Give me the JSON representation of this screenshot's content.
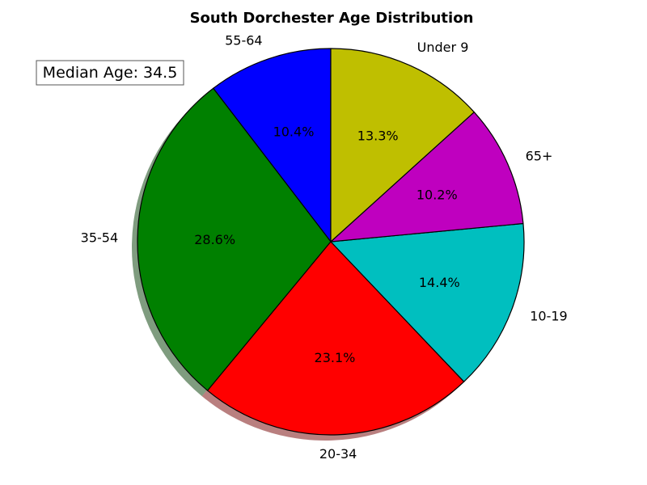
{
  "chart_data": {
    "type": "pie",
    "title": "South Dorchester Age Distribution",
    "annotation": "Median Age: 34.5",
    "start_angle_deg": 90,
    "direction": "counterclockwise",
    "shadow": true,
    "slices": [
      {
        "label": "55-64",
        "value": 10.4,
        "pct_label": "10.4%",
        "color": "#0000ff"
      },
      {
        "label": "35-54",
        "value": 28.6,
        "pct_label": "28.6%",
        "color": "#008000"
      },
      {
        "label": "20-34",
        "value": 23.1,
        "pct_label": "23.1%",
        "color": "#ff0000"
      },
      {
        "label": "10-19",
        "value": 14.4,
        "pct_label": "14.4%",
        "color": "#00bfbf"
      },
      {
        "label": "65+",
        "value": 10.2,
        "pct_label": "10.2%",
        "color": "#bf00bf"
      },
      {
        "label": "Under 9",
        "value": 13.3,
        "pct_label": "13.3%",
        "color": "#bfbf00"
      }
    ]
  }
}
